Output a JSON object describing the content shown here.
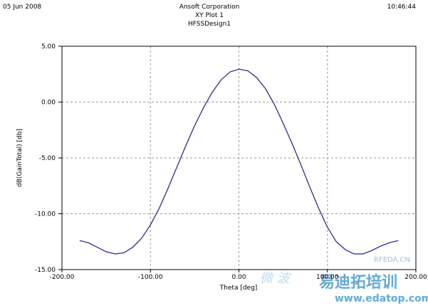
{
  "header": {
    "date": "05 Jun 2008",
    "company": "Ansoft Corporation",
    "plot_name": "XY Plot 1",
    "design": "HFSSDesign1",
    "time": "10:46:44"
  },
  "watermark": {
    "cn_text": "易迪拓培训",
    "url": "www.edatop.com",
    "site": "RFEDA.CN",
    "wave": "微 波"
  },
  "chart_data": {
    "type": "line",
    "x_label": "Theta [deg]",
    "y_label": "dB(GainTotal) [db]",
    "xlim": [
      -200,
      200
    ],
    "ylim": [
      -15,
      5
    ],
    "xticks": [
      {
        "value": -200,
        "label": "-200.00"
      },
      {
        "value": -100,
        "label": "-100.00"
      },
      {
        "value": 0,
        "label": "0.00"
      },
      {
        "value": 100,
        "label": "100.00"
      },
      {
        "value": 200,
        "label": "200.00"
      }
    ],
    "yticks": [
      {
        "value": -15,
        "label": "-15.00"
      },
      {
        "value": -10,
        "label": "-10.00"
      },
      {
        "value": -5,
        "label": "-5.00"
      },
      {
        "value": 0,
        "label": "0.00"
      },
      {
        "value": 5,
        "label": "5.00"
      }
    ],
    "grid": true,
    "x": [
      -180,
      -170,
      -160,
      -150,
      -140,
      -130,
      -120,
      -110,
      -100,
      -90,
      -80,
      -70,
      -60,
      -50,
      -40,
      -30,
      -20,
      -10,
      0,
      10,
      20,
      30,
      40,
      50,
      60,
      70,
      80,
      90,
      100,
      110,
      120,
      130,
      140,
      150,
      160,
      170,
      180
    ],
    "series": [
      {
        "color": "#1a1aa0",
        "values": [
          -12.4,
          -12.6,
          -13.0,
          -13.4,
          -13.6,
          -13.5,
          -13.0,
          -12.2,
          -11.0,
          -9.5,
          -7.7,
          -5.8,
          -3.9,
          -2.1,
          -0.5,
          0.9,
          2.0,
          2.7,
          2.95,
          2.8,
          2.2,
          1.2,
          -0.2,
          -1.9,
          -3.7,
          -5.6,
          -7.6,
          -9.5,
          -11.2,
          -12.5,
          -13.2,
          -13.6,
          -13.6,
          -13.3,
          -12.9,
          -12.6,
          -12.4
        ]
      }
    ]
  }
}
